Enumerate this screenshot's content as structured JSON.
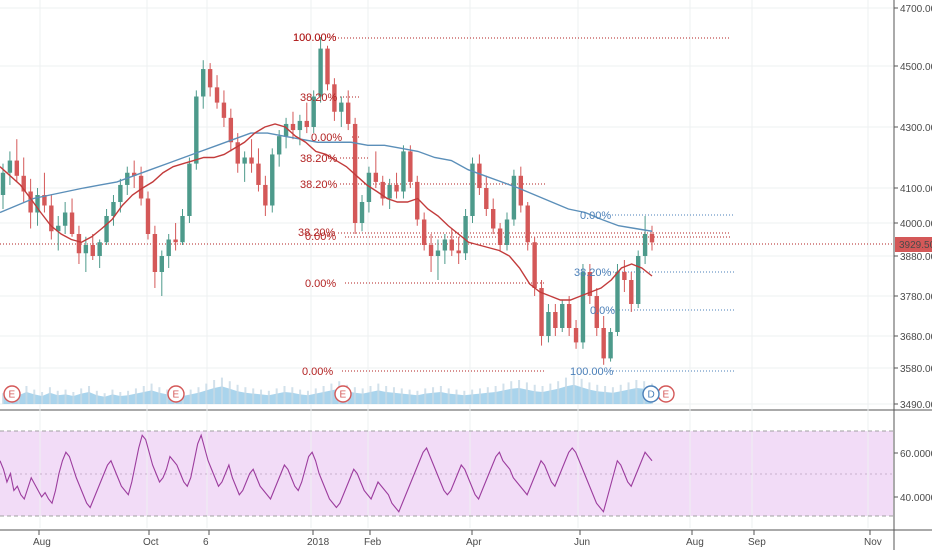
{
  "colors": {
    "up": "#4d9a8b",
    "down": "#d45858",
    "ma_slow": "#5b8fb9",
    "ma_fast": "#c23b3b",
    "volume_area": "#8ec5e6",
    "volume_bar": "#c7d9e6",
    "rsi_line": "#9c3d9e",
    "rsi_band": "#f2dcf7",
    "fib_red": "#b22222",
    "fib_blue": "#4a7fb8",
    "price_badge": "#d45858",
    "axis_text": "#4a4a4a"
  },
  "price_axis": {
    "ticks": [
      "4700.00",
      "4500.00",
      "4300.00",
      "4100.00",
      "4000.00",
      "3880.00",
      "3780.00",
      "3680.00",
      "3580.00",
      "3490.00"
    ],
    "current_price_label": "3929.50"
  },
  "rsi_axis": {
    "ticks": [
      "60.0000",
      "40.0000"
    ]
  },
  "time_axis": {
    "labels": [
      "Aug",
      "Oct",
      "6",
      "2018",
      "Feb",
      "Apr",
      "Jun",
      "Aug",
      "Sep",
      "Nov"
    ]
  },
  "fib_labels_red": [
    "100.00%",
    "100.00%",
    "38.20%",
    "0.00%",
    "38.20%",
    "38.20%",
    "38.20%",
    "0.00%",
    "0.00%",
    "0.00%"
  ],
  "fib_labels_blue": [
    "0.00%",
    "38.20%",
    "0.0%",
    "100.00%"
  ],
  "events": [
    "E",
    "E",
    "E",
    "E",
    "D"
  ],
  "chart_data": {
    "type": "candlestick",
    "panes": [
      "price",
      "volume",
      "rsi"
    ],
    "candles": [
      [
        4080,
        4180,
        4040,
        4150
      ],
      [
        4150,
        4220,
        4110,
        4190
      ],
      [
        4190,
        4260,
        4120,
        4140
      ],
      [
        4140,
        4200,
        4060,
        4090
      ],
      [
        4090,
        4130,
        3980,
        4030
      ],
      [
        4030,
        4100,
        3990,
        4080
      ],
      [
        4080,
        4150,
        4030,
        4050
      ],
      [
        4050,
        4080,
        3940,
        3970
      ],
      [
        3970,
        4020,
        3900,
        3990
      ],
      [
        3990,
        4060,
        3960,
        4030
      ],
      [
        4030,
        4070,
        3950,
        3960
      ],
      [
        3960,
        3990,
        3860,
        3890
      ],
      [
        3890,
        3950,
        3840,
        3920
      ],
      [
        3920,
        3960,
        3870,
        3880
      ],
      [
        3880,
        3940,
        3850,
        3930
      ],
      [
        3930,
        4040,
        3920,
        4020
      ],
      [
        4020,
        4080,
        3990,
        4060
      ],
      [
        4060,
        4130,
        4030,
        4110
      ],
      [
        4110,
        4170,
        4080,
        4150
      ],
      [
        4150,
        4190,
        4100,
        4140
      ],
      [
        4140,
        4170,
        4050,
        4070
      ],
      [
        4070,
        4090,
        3940,
        3960
      ],
      [
        3960,
        3990,
        3800,
        3840
      ],
      [
        3840,
        3900,
        3780,
        3880
      ],
      [
        3880,
        3960,
        3850,
        3940
      ],
      [
        3940,
        4000,
        3900,
        3930
      ],
      [
        3930,
        4040,
        3920,
        4020
      ],
      [
        4020,
        4200,
        4000,
        4180
      ],
      [
        4180,
        4420,
        4160,
        4400
      ],
      [
        4400,
        4520,
        4360,
        4490
      ],
      [
        4490,
        4510,
        4400,
        4430
      ],
      [
        4430,
        4470,
        4360,
        4380
      ],
      [
        4380,
        4420,
        4300,
        4330
      ],
      [
        4330,
        4360,
        4220,
        4250
      ],
      [
        4250,
        4280,
        4150,
        4180
      ],
      [
        4180,
        4220,
        4120,
        4200
      ],
      [
        4200,
        4260,
        4150,
        4180
      ],
      [
        4180,
        4230,
        4090,
        4110
      ],
      [
        4110,
        4140,
        4020,
        4050
      ],
      [
        4050,
        4230,
        4030,
        4210
      ],
      [
        4210,
        4290,
        4170,
        4270
      ],
      [
        4270,
        4330,
        4230,
        4310
      ],
      [
        4310,
        4350,
        4260,
        4290
      ],
      [
        4290,
        4340,
        4240,
        4320
      ],
      [
        4320,
        4380,
        4280,
        4300
      ],
      [
        4300,
        4420,
        4280,
        4400
      ],
      [
        4400,
        4600,
        4380,
        4560
      ],
      [
        4560,
        4570,
        4420,
        4440
      ],
      [
        4440,
        4460,
        4320,
        4350
      ],
      [
        4350,
        4400,
        4300,
        4380
      ],
      [
        4380,
        4420,
        4290,
        4310
      ],
      [
        4310,
        4330,
        3960,
        4000
      ],
      [
        4000,
        4080,
        3970,
        4060
      ],
      [
        4060,
        4170,
        4030,
        4150
      ],
      [
        4150,
        4220,
        4100,
        4120
      ],
      [
        4120,
        4140,
        4050,
        4070
      ],
      [
        4070,
        4130,
        4040,
        4110
      ],
      [
        4110,
        4150,
        4070,
        4090
      ],
      [
        4090,
        4240,
        4070,
        4220
      ],
      [
        4220,
        4240,
        4100,
        4120
      ],
      [
        4120,
        4140,
        3990,
        4010
      ],
      [
        4010,
        4030,
        3900,
        3920
      ],
      [
        3920,
        3960,
        3840,
        3880
      ],
      [
        3880,
        3940,
        3820,
        3900
      ],
      [
        3900,
        3960,
        3860,
        3940
      ],
      [
        3940,
        3980,
        3880,
        3900
      ],
      [
        3900,
        3950,
        3860,
        3890
      ],
      [
        3890,
        4040,
        3870,
        4020
      ],
      [
        4020,
        4200,
        4000,
        4180
      ],
      [
        4180,
        4210,
        4080,
        4100
      ],
      [
        4100,
        4140,
        4020,
        4040
      ],
      [
        4040,
        4070,
        3960,
        3980
      ],
      [
        3980,
        4000,
        3900,
        3920
      ],
      [
        3920,
        4030,
        3900,
        4010
      ],
      [
        4010,
        4160,
        3990,
        4140
      ],
      [
        4140,
        4170,
        4030,
        4050
      ],
      [
        4050,
        4060,
        3900,
        3930
      ],
      [
        3930,
        3950,
        3780,
        3800
      ],
      [
        3800,
        3820,
        3650,
        3680
      ],
      [
        3680,
        3760,
        3660,
        3740
      ],
      [
        3740,
        3760,
        3680,
        3700
      ],
      [
        3700,
        3770,
        3690,
        3760
      ],
      [
        3760,
        3780,
        3680,
        3700
      ],
      [
        3700,
        3720,
        3640,
        3660
      ],
      [
        3660,
        3860,
        3640,
        3840
      ],
      [
        3840,
        3860,
        3760,
        3780
      ],
      [
        3780,
        3800,
        3680,
        3700
      ],
      [
        3700,
        3730,
        3590,
        3610
      ],
      [
        3610,
        3700,
        3600,
        3690
      ],
      [
        3690,
        3860,
        3680,
        3840
      ],
      [
        3840,
        3870,
        3790,
        3820
      ],
      [
        3820,
        3840,
        3740,
        3760
      ],
      [
        3760,
        3900,
        3750,
        3880
      ],
      [
        3880,
        4020,
        3860,
        3960
      ],
      [
        3960,
        3990,
        3900,
        3929.5
      ]
    ],
    "ma_fast": [
      4170,
      4140,
      4110,
      4070,
      4030,
      3990,
      3960,
      3940,
      3930,
      3950,
      3980,
      4010,
      4050,
      4080,
      4100,
      4120,
      4150,
      4170,
      4180,
      4190,
      4200,
      4200,
      4210,
      4230,
      4250,
      4280,
      4300,
      4310,
      4300,
      4270,
      4250,
      4220,
      4210,
      4190,
      4170,
      4140,
      4110,
      4090,
      4070,
      4060,
      4060,
      4070,
      4040,
      4020,
      3990,
      3960,
      3930,
      3920,
      3910,
      3900,
      3880,
      3850,
      3810,
      3790,
      3780,
      3770,
      3770,
      3780,
      3790,
      3800,
      3820,
      3850,
      3860,
      3850,
      3830
    ],
    "ma_slow": [
      4030,
      4050,
      4070,
      4080,
      4090,
      4100,
      4110,
      4120,
      4140,
      4160,
      4180,
      4200,
      4220,
      4240,
      4260,
      4280,
      4280,
      4270,
      4260,
      4250,
      4250,
      4250,
      4240,
      4240,
      4230,
      4220,
      4200,
      4190,
      4160,
      4140,
      4120,
      4100,
      4080,
      4060,
      4040,
      4030,
      4010,
      3990,
      3980,
      3970
    ],
    "rsi": [
      58,
      54,
      48,
      52,
      44,
      46,
      42,
      40,
      45,
      50,
      47,
      44,
      41,
      43,
      40,
      38,
      44,
      52,
      58,
      62,
      60,
      55,
      50,
      46,
      42,
      38,
      36,
      40,
      44,
      48,
      52,
      56,
      58,
      54,
      50,
      46,
      44,
      42,
      48,
      56,
      64,
      70,
      68,
      62,
      56,
      52,
      48,
      50,
      54,
      60,
      58,
      56,
      52,
      48,
      46,
      50,
      58,
      66,
      70,
      64,
      58,
      54,
      50,
      46,
      48,
      52,
      56,
      50,
      46,
      42,
      44,
      48,
      52,
      54,
      50,
      46,
      44,
      42,
      40,
      44,
      48,
      52,
      56,
      54,
      50,
      46,
      44,
      48,
      54,
      60,
      62,
      58,
      52,
      48,
      44,
      40,
      38,
      36,
      38,
      42,
      46,
      50,
      54,
      52,
      48,
      44,
      42,
      40,
      44,
      48,
      46,
      44,
      42,
      38,
      36,
      34,
      38,
      42,
      46,
      50,
      54,
      58,
      62,
      64,
      60,
      56,
      52,
      48,
      44,
      42,
      44,
      48,
      52,
      56,
      54,
      50,
      46,
      42,
      40,
      44,
      48,
      52,
      56,
      60,
      62,
      58,
      56,
      54,
      50,
      48,
      46,
      44,
      42,
      46,
      50,
      54,
      58,
      56,
      52,
      48,
      46,
      50,
      54,
      58,
      62,
      64,
      62,
      58,
      54,
      50,
      46,
      42,
      38,
      36,
      34,
      40,
      46,
      52,
      58,
      56,
      52,
      48,
      46,
      50,
      54,
      58,
      62,
      60,
      58
    ],
    "volume": [
      18,
      26,
      22,
      30,
      24,
      20,
      28,
      22,
      24,
      20,
      26,
      30,
      22,
      18,
      24,
      20,
      22,
      26,
      30,
      34,
      28,
      24,
      22,
      20,
      24,
      28,
      34,
      40,
      44,
      38,
      32,
      28,
      26,
      24,
      22,
      26,
      30,
      28,
      24,
      22,
      26,
      30,
      34,
      38,
      32,
      28,
      26,
      30,
      34,
      30,
      28,
      26,
      24,
      22,
      26,
      28,
      30,
      26,
      24,
      22,
      24,
      26,
      28,
      30,
      34,
      38,
      40,
      36,
      32,
      30,
      34,
      38,
      44,
      48,
      42,
      36,
      32,
      30,
      28,
      32,
      36,
      40,
      38,
      34
    ]
  }
}
